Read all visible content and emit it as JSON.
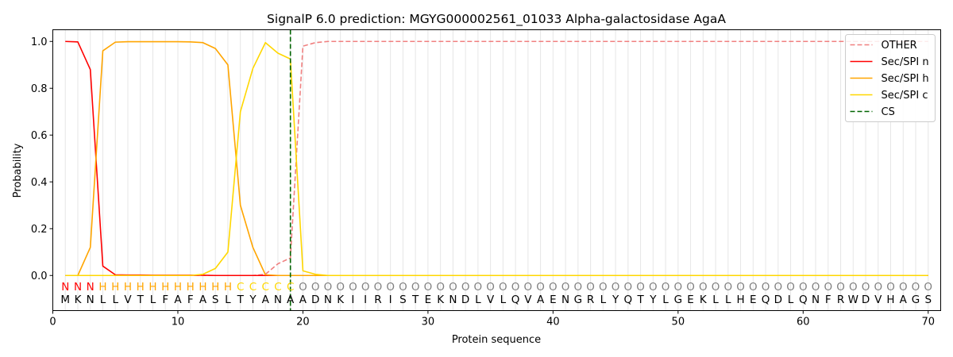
{
  "chart_data": {
    "type": "line",
    "title": "SignalP 6.0 prediction: MGYG000002561_01033 Alpha-galactosidase AgaA",
    "xlabel": "Protein sequence",
    "ylabel": "Probability",
    "xlim": [
      0,
      71
    ],
    "ylim": [
      -0.15,
      1.05
    ],
    "xticks": [
      0,
      10,
      20,
      30,
      40,
      50,
      60,
      70
    ],
    "yticks": [
      0.0,
      0.2,
      0.4,
      0.6,
      0.8,
      1.0
    ],
    "x": [
      1,
      2,
      3,
      4,
      5,
      6,
      7,
      8,
      9,
      10,
      11,
      12,
      13,
      14,
      15,
      16,
      17,
      18,
      19,
      20,
      21,
      22,
      23,
      24,
      25,
      26,
      27,
      28,
      29,
      30,
      31,
      32,
      33,
      34,
      35,
      36,
      37,
      38,
      39,
      40,
      41,
      42,
      43,
      44,
      45,
      46,
      47,
      48,
      49,
      50,
      51,
      52,
      53,
      54,
      55,
      56,
      57,
      58,
      59,
      60,
      61,
      62,
      63,
      64,
      65,
      66,
      67,
      68,
      69,
      70
    ],
    "sequence": [
      "M",
      "K",
      "N",
      "L",
      "L",
      "V",
      "T",
      "L",
      "F",
      "A",
      "F",
      "A",
      "S",
      "L",
      "T",
      "Y",
      "A",
      "N",
      "A",
      "A",
      "D",
      "N",
      "K",
      "I",
      "I",
      "R",
      "I",
      "S",
      "T",
      "E",
      "K",
      "N",
      "D",
      "L",
      "V",
      "L",
      "Q",
      "V",
      "A",
      "E",
      "N",
      "G",
      "R",
      "L",
      "Y",
      "Q",
      "T",
      "Y",
      "L",
      "G",
      "E",
      "K",
      "L",
      "L",
      "H",
      "E",
      "Q",
      "D",
      "L",
      "Q",
      "N",
      "F",
      "R",
      "W",
      "D",
      "V",
      "H",
      "A",
      "G",
      "S"
    ],
    "labels": [
      "N",
      "N",
      "N",
      "H",
      "H",
      "H",
      "H",
      "H",
      "H",
      "H",
      "H",
      "H",
      "H",
      "H",
      "C",
      "C",
      "C",
      "C",
      "C",
      "O",
      "O",
      "O",
      "O",
      "O",
      "O",
      "O",
      "O",
      "O",
      "O",
      "O",
      "O",
      "O",
      "O",
      "O",
      "O",
      "O",
      "O",
      "O",
      "O",
      "O",
      "O",
      "O",
      "O",
      "O",
      "O",
      "O",
      "O",
      "O",
      "O",
      "O",
      "O",
      "O",
      "O",
      "O",
      "O",
      "O",
      "O",
      "O",
      "O",
      "O",
      "O",
      "O",
      "O",
      "O",
      "O",
      "O",
      "O",
      "O",
      "O",
      "O"
    ],
    "label_colors": {
      "N": "#ff0000",
      "H": "#ffa500",
      "C": "#ffd700",
      "O": "#808080"
    },
    "series": [
      {
        "name": "OTHER",
        "color": "#f08080",
        "dash": "dashed",
        "values": [
          0,
          0,
          0,
          0,
          0,
          0,
          0,
          0,
          0,
          0,
          0,
          0,
          0,
          0,
          0,
          0,
          0.005,
          0.05,
          0.075,
          0.98,
          0.995,
          1,
          1,
          1,
          1,
          1,
          1,
          1,
          1,
          1,
          1,
          1,
          1,
          1,
          1,
          1,
          1,
          1,
          1,
          1,
          1,
          1,
          1,
          1,
          1,
          1,
          1,
          1,
          1,
          1,
          1,
          1,
          1,
          1,
          1,
          1,
          1,
          1,
          1,
          1,
          1,
          1,
          1,
          1,
          1,
          1,
          1,
          1,
          1,
          1
        ]
      },
      {
        "name": "Sec/SPI n",
        "color": "#ff0000",
        "dash": "solid",
        "values": [
          1,
          0.998,
          0.88,
          0.04,
          0.003,
          0.002,
          0.002,
          0.001,
          0.001,
          0.001,
          0.001,
          0.001,
          0,
          0,
          0,
          0,
          0,
          0,
          0,
          0,
          0,
          0,
          0,
          0,
          0,
          0,
          0,
          0,
          0,
          0,
          0,
          0,
          0,
          0,
          0,
          0,
          0,
          0,
          0,
          0,
          0,
          0,
          0,
          0,
          0,
          0,
          0,
          0,
          0,
          0,
          0,
          0,
          0,
          0,
          0,
          0,
          0,
          0,
          0,
          0,
          0,
          0,
          0,
          0,
          0,
          0,
          0,
          0,
          0,
          0
        ]
      },
      {
        "name": "Sec/SPI h",
        "color": "#ffa500",
        "dash": "solid",
        "values": [
          0,
          0,
          0.12,
          0.96,
          0.997,
          0.999,
          0.999,
          0.999,
          0.999,
          0.999,
          0.998,
          0.995,
          0.97,
          0.9,
          0.3,
          0.12,
          0.003,
          0,
          0,
          0,
          0,
          0,
          0,
          0,
          0,
          0,
          0,
          0,
          0,
          0,
          0,
          0,
          0,
          0,
          0,
          0,
          0,
          0,
          0,
          0,
          0,
          0,
          0,
          0,
          0,
          0,
          0,
          0,
          0,
          0,
          0,
          0,
          0,
          0,
          0,
          0,
          0,
          0,
          0,
          0,
          0,
          0,
          0,
          0,
          0,
          0,
          0,
          0,
          0,
          0
        ]
      },
      {
        "name": "Sec/SPI c",
        "color": "#ffd700",
        "dash": "solid",
        "values": [
          0,
          0,
          0,
          0,
          0,
          0,
          0,
          0,
          0,
          0,
          0,
          0.005,
          0.03,
          0.1,
          0.7,
          0.885,
          0.995,
          0.95,
          0.925,
          0.02,
          0.005,
          0,
          0,
          0,
          0,
          0,
          0,
          0,
          0,
          0,
          0,
          0,
          0,
          0,
          0,
          0,
          0,
          0,
          0,
          0,
          0,
          0,
          0,
          0,
          0,
          0,
          0,
          0,
          0,
          0,
          0,
          0,
          0,
          0,
          0,
          0,
          0,
          0,
          0,
          0,
          0,
          0,
          0,
          0,
          0,
          0,
          0,
          0,
          0,
          0
        ]
      }
    ],
    "cs": {
      "name": "CS",
      "x": 19,
      "color": "#006400"
    },
    "legend": {
      "placement": "top-right",
      "entries": [
        "OTHER",
        "Sec/SPI n",
        "Sec/SPI h",
        "Sec/SPI c",
        "CS"
      ]
    },
    "grid": {
      "vertical": true,
      "horizontal": false
    }
  }
}
